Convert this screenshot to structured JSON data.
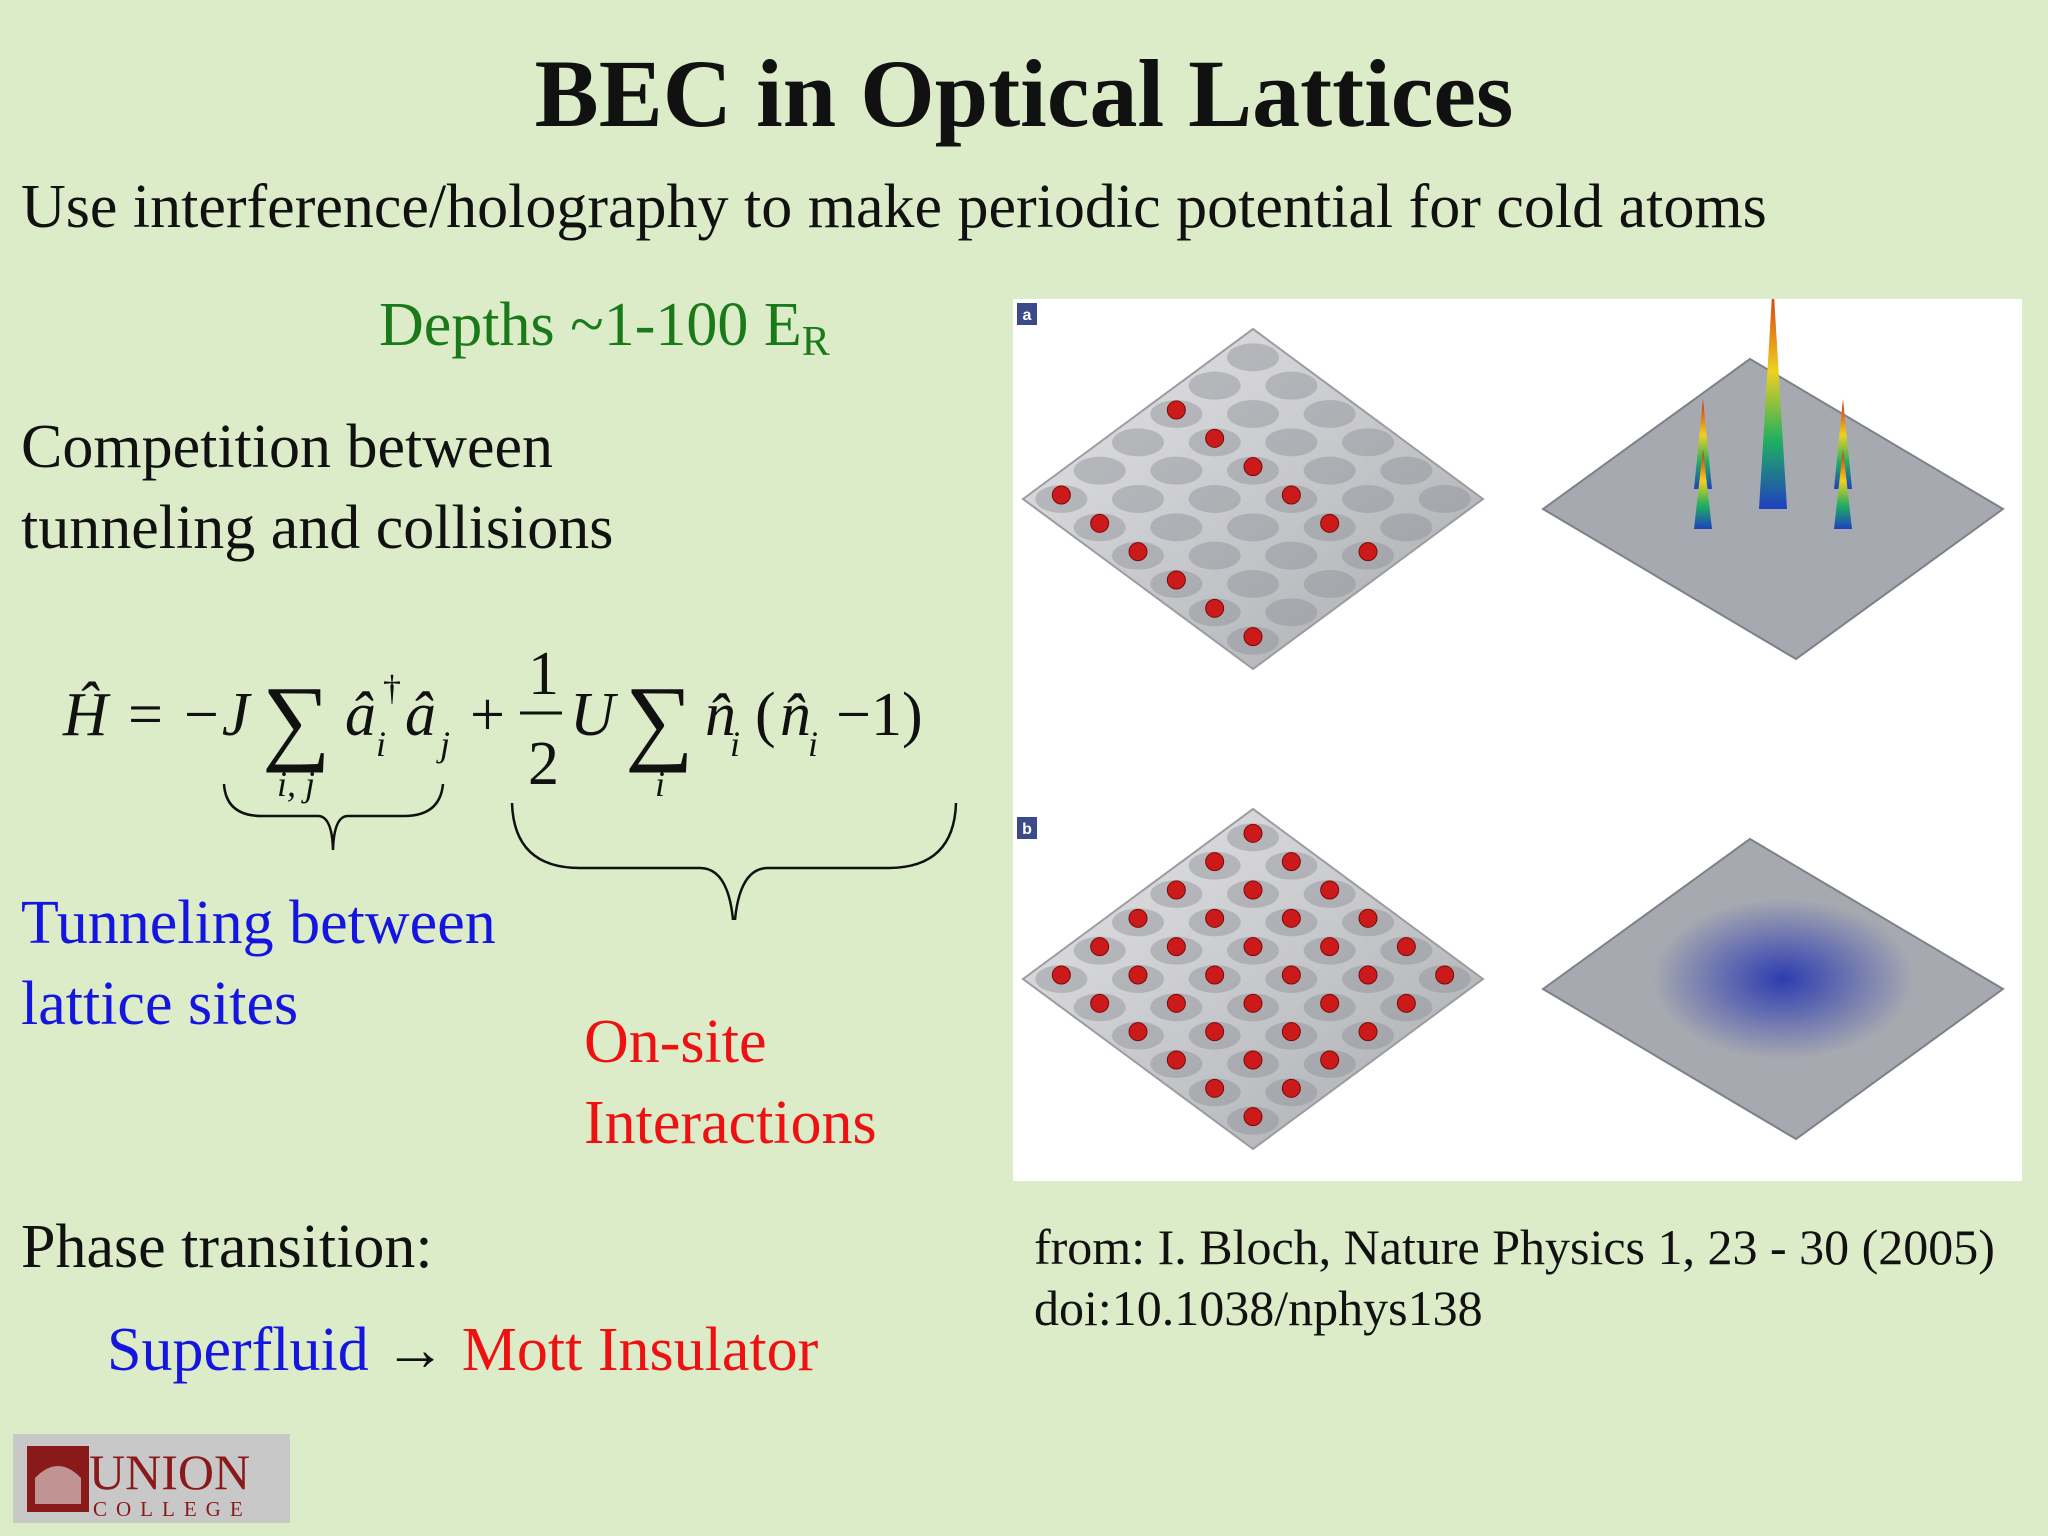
{
  "title": "BEC in Optical Lattices",
  "subtitle": "Use interference/holography to make periodic potential for cold atoms",
  "depths": {
    "text": "Depths ~1-100 E",
    "subscript": "R"
  },
  "competition": [
    "Competition between",
    "tunneling and collisions"
  ],
  "formula": [
    "Ĥ",
    "=",
    "−J",
    "∑",
    "â",
    "†",
    "i",
    "â",
    "j",
    "+",
    "1",
    "2",
    "U",
    "∑",
    "n̂",
    "i",
    "(",
    "n̂",
    "i",
    "−1)",
    "i, j",
    "i"
  ],
  "tunneling_label": [
    "Tunneling between",
    "lattice sites"
  ],
  "onsite_label": [
    "On-site",
    "Interactions"
  ],
  "figure": {
    "panel_a": "a",
    "panel_b": "b"
  },
  "citation": [
    "from: I. Bloch, Nature Physics 1, 23 - 30 (2005)",
    "doi:10.1038/nphys138"
  ],
  "phase": {
    "heading": "Phase transition:",
    "from": "Superfluid",
    "arrow": "→",
    "to": "Mott Insulator"
  },
  "logo": {
    "name": "UNION",
    "sub": "COLLEGE"
  }
}
